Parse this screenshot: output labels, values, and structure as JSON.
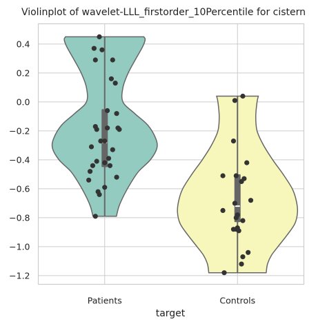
{
  "chart_data": {
    "type": "violin",
    "title": "Violinplot of wavelet-LLL_firstorder_10Percentile for cistern",
    "xlabel": "target",
    "ylabel": "",
    "ylim": [
      -1.26,
      0.54
    ],
    "yticks": [
      "0.4",
      "0.2",
      "0.0",
      "−0.2",
      "−0.4",
      "−0.6",
      "−0.8",
      "−1.0",
      "−1.2"
    ],
    "ytick_values": [
      0.4,
      0.2,
      0.0,
      -0.2,
      -0.4,
      -0.6,
      -0.8,
      -1.0,
      -1.2
    ],
    "grid": true,
    "categories": [
      {
        "name": "Patients",
        "color": "#93cbc1",
        "min": -0.79,
        "max": 0.45,
        "q1": -0.45,
        "median": -0.28,
        "q3": -0.05,
        "density": [
          [
            0.45,
            0.3
          ],
          [
            0.43,
            0.31
          ],
          [
            0.38,
            0.29
          ],
          [
            0.3,
            0.24
          ],
          [
            0.2,
            0.18
          ],
          [
            0.1,
            0.14
          ],
          [
            0.0,
            0.14
          ],
          [
            -0.08,
            0.23
          ],
          [
            -0.16,
            0.33
          ],
          [
            -0.25,
            0.39
          ],
          [
            -0.32,
            0.4
          ],
          [
            -0.4,
            0.35
          ],
          [
            -0.48,
            0.26
          ],
          [
            -0.56,
            0.2
          ],
          [
            -0.64,
            0.15
          ],
          [
            -0.72,
            0.11
          ],
          [
            -0.79,
            0.09
          ]
        ],
        "points": [
          [
            0.45,
            -0.04
          ],
          [
            0.37,
            -0.08
          ],
          [
            0.36,
            -0.02
          ],
          [
            0.29,
            -0.07
          ],
          [
            0.29,
            0.06
          ],
          [
            0.16,
            0.05
          ],
          [
            0.13,
            0.08
          ],
          [
            -0.06,
            0.02
          ],
          [
            -0.08,
            0.09
          ],
          [
            -0.17,
            -0.07
          ],
          [
            -0.18,
            0.02
          ],
          [
            -0.18,
            0.1
          ],
          [
            -0.19,
            0.11
          ],
          [
            -0.19,
            -0.06
          ],
          [
            -0.27,
            0.0
          ],
          [
            -0.27,
            -0.03
          ],
          [
            -0.31,
            -0.1
          ],
          [
            -0.33,
            0.06
          ],
          [
            -0.39,
            0.03
          ],
          [
            -0.41,
            -0.06
          ],
          [
            -0.42,
            0.0
          ],
          [
            -0.44,
            -0.09
          ],
          [
            -0.44,
            0.04
          ],
          [
            -0.48,
            -0.11
          ],
          [
            -0.52,
            0.09
          ],
          [
            -0.54,
            -0.12
          ],
          [
            -0.59,
            0.0
          ],
          [
            -0.62,
            -0.05
          ],
          [
            -0.64,
            -0.04
          ],
          [
            -0.79,
            -0.07
          ]
        ]
      },
      {
        "name": "Controls",
        "color": "#f7f7bc",
        "min": -1.18,
        "max": 0.04,
        "q1": -0.83,
        "median": -0.72,
        "q3": -0.5,
        "density": [
          [
            0.04,
            0.16
          ],
          [
            0.0,
            0.15
          ],
          [
            -0.1,
            0.14
          ],
          [
            -0.2,
            0.15
          ],
          [
            -0.3,
            0.2
          ],
          [
            -0.4,
            0.27
          ],
          [
            -0.5,
            0.35
          ],
          [
            -0.6,
            0.42
          ],
          [
            -0.68,
            0.45
          ],
          [
            -0.76,
            0.46
          ],
          [
            -0.84,
            0.44
          ],
          [
            -0.92,
            0.38
          ],
          [
            -1.0,
            0.31
          ],
          [
            -1.06,
            0.26
          ],
          [
            -1.12,
            0.23
          ],
          [
            -1.18,
            0.22
          ]
        ],
        "points": [
          [
            0.04,
            0.04
          ],
          [
            0.01,
            -0.02
          ],
          [
            -0.27,
            -0.03
          ],
          [
            -0.42,
            0.07
          ],
          [
            -0.51,
            -0.11
          ],
          [
            -0.51,
            -0.01
          ],
          [
            -0.53,
            0.05
          ],
          [
            -0.55,
            0.03
          ],
          [
            -0.68,
            0.1
          ],
          [
            -0.7,
            -0.02
          ],
          [
            -0.75,
            -0.11
          ],
          [
            -0.78,
            0.0
          ],
          [
            -0.8,
            -0.01
          ],
          [
            -0.82,
            0.04
          ],
          [
            -0.87,
            0.0
          ],
          [
            -0.88,
            -0.03
          ],
          [
            -0.88,
            -0.01
          ],
          [
            -0.89,
            0.01
          ],
          [
            -1.04,
            0.08
          ],
          [
            -1.07,
            0.04
          ],
          [
            -1.12,
            0.03
          ],
          [
            -1.18,
            -0.1
          ]
        ]
      }
    ]
  }
}
